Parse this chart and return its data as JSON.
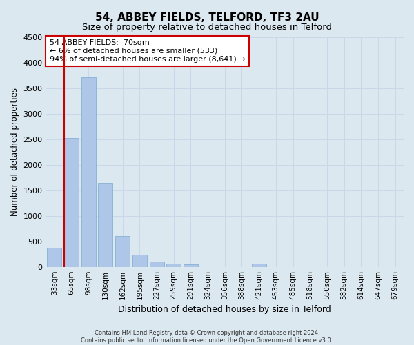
{
  "title": "54, ABBEY FIELDS, TELFORD, TF3 2AU",
  "subtitle": "Size of property relative to detached houses in Telford",
  "xlabel": "Distribution of detached houses by size in Telford",
  "ylabel": "Number of detached properties",
  "footer_line1": "Contains HM Land Registry data © Crown copyright and database right 2024.",
  "footer_line2": "Contains public sector information licensed under the Open Government Licence v3.0.",
  "categories": [
    "33sqm",
    "65sqm",
    "98sqm",
    "130sqm",
    "162sqm",
    "195sqm",
    "227sqm",
    "259sqm",
    "291sqm",
    "324sqm",
    "356sqm",
    "388sqm",
    "421sqm",
    "453sqm",
    "485sqm",
    "518sqm",
    "550sqm",
    "582sqm",
    "614sqm",
    "647sqm",
    "679sqm"
  ],
  "values": [
    370,
    2520,
    3720,
    1640,
    600,
    240,
    100,
    60,
    45,
    0,
    0,
    0,
    60,
    0,
    0,
    0,
    0,
    0,
    0,
    0,
    0
  ],
  "bar_color": "#aec6e8",
  "bar_edge_color": "#7aaad0",
  "vline_x_index": 1,
  "vline_color": "#cc0000",
  "annotation_title": "54 ABBEY FIELDS:  70sqm",
  "annotation_line1": "← 6% of detached houses are smaller (533)",
  "annotation_line2": "94% of semi-detached houses are larger (8,641) →",
  "annotation_box_color": "#ffffff",
  "annotation_box_edge_color": "#cc0000",
  "ylim": [
    0,
    4500
  ],
  "yticks": [
    0,
    500,
    1000,
    1500,
    2000,
    2500,
    3000,
    3500,
    4000,
    4500
  ],
  "grid_color": "#c8d8e8",
  "background_color": "#dce8f0",
  "title_fontsize": 11,
  "subtitle_fontsize": 9.5
}
